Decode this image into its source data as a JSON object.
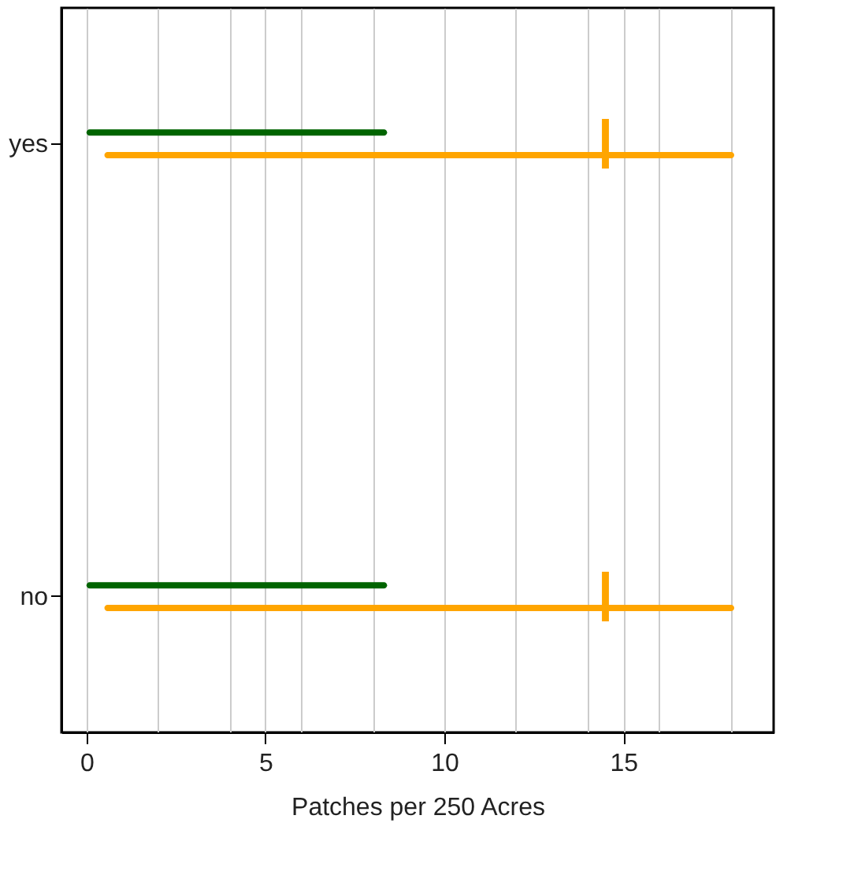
{
  "chart_data": {
    "type": "bar",
    "orientation": "horizontal",
    "xlabel": "Patches per 250 Acres",
    "categories": [
      "yes",
      "no"
    ],
    "series": [
      {
        "color": "#006400",
        "base": [
          0,
          0
        ],
        "values": [
          8.4,
          8.4
        ]
      },
      {
        "color": "#ffa500",
        "base": [
          0.5,
          0.5
        ],
        "values": [
          17.6,
          17.6
        ]
      },
      {
        "type": "scatter",
        "color": "#ffa500",
        "x": [
          "yes",
          "no"
        ],
        "values": [
          14.5,
          14.5
        ]
      }
    ],
    "xlim": [
      -0.7,
      19.2
    ],
    "xticks": [
      0,
      {
        "value": 2,
        "label": null
      },
      {
        "value": 4,
        "label": null
      },
      5,
      {
        "value": 6,
        "label": null
      },
      {
        "value": 8,
        "label": null
      },
      10,
      {
        "value": 12,
        "label": null
      },
      {
        "value": 14,
        "label": null
      },
      15,
      {
        "value": 16,
        "label": null
      },
      {
        "value": 18,
        "label": null
      }
    ],
    "grid": "x",
    "marker": "cross"
  }
}
